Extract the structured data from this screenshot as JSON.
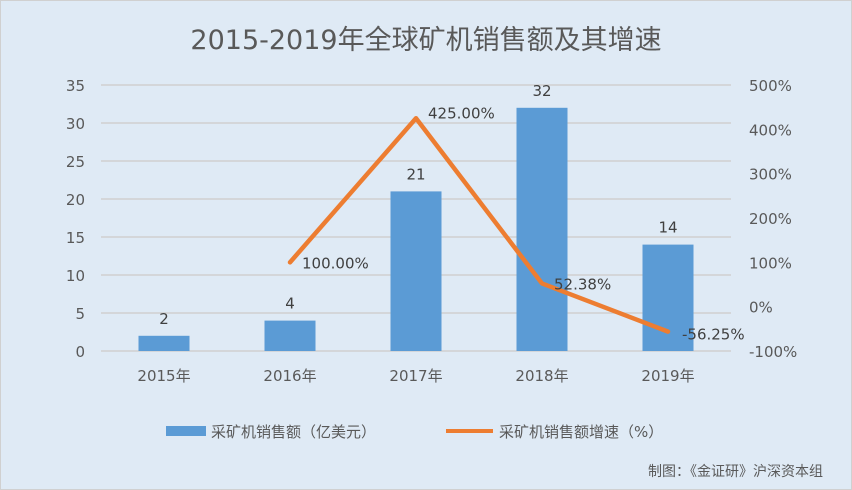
{
  "chart_data": {
    "type": "bar+line",
    "title": "2015-2019年全球矿机销售额及其增速",
    "categories": [
      "2015年",
      "2016年",
      "2017年",
      "2018年",
      "2019年"
    ],
    "series": [
      {
        "name": "采矿机销售额（亿美元）",
        "type": "bar",
        "axis": "left",
        "color": "#5b9bd5",
        "values": [
          2,
          4,
          21,
          32,
          14
        ],
        "labels": [
          "2",
          "4",
          "21",
          "32",
          "14"
        ]
      },
      {
        "name": "采矿机销售额增速（%）",
        "type": "line",
        "axis": "right",
        "color": "#ed7d31",
        "values": [
          null,
          100,
          425,
          52.38,
          -56.25
        ],
        "labels": [
          "",
          "100.00%",
          "425.00%",
          "52.38%",
          "-56.25%"
        ]
      }
    ],
    "left_axis": {
      "ylim": [
        0,
        35
      ],
      "ticks": [
        "0",
        "5",
        "10",
        "15",
        "20",
        "25",
        "30",
        "35"
      ]
    },
    "right_axis": {
      "ylim": [
        -100,
        500
      ],
      "ticks": [
        "-100%",
        "0%",
        "100%",
        "200%",
        "300%",
        "400%",
        "500%"
      ]
    },
    "grid": true,
    "legend": "bottom",
    "source_note": "制图：《金证研》沪深资本组"
  }
}
